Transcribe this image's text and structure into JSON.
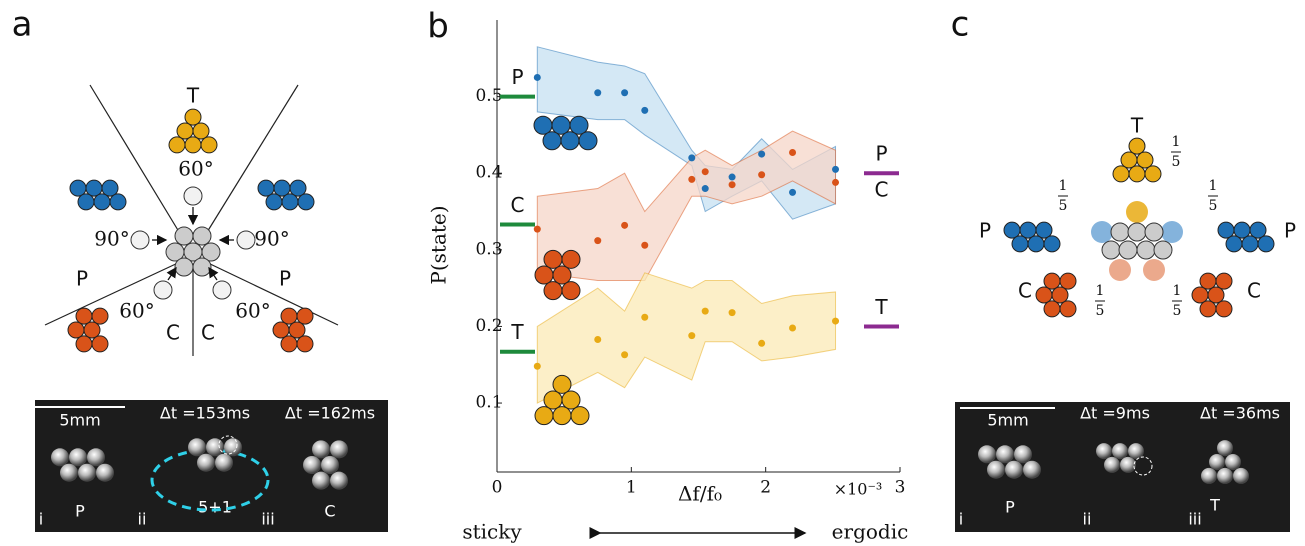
{
  "panel_a": {
    "label": "a",
    "diagram": {
      "top": "T",
      "top_angle": "60°",
      "left_angle": "90°",
      "right_angle": "90°",
      "left_state": "P",
      "right_state": "P",
      "bottom_left_angle": "60°",
      "bottom_left_state": "C",
      "bottom_right_state": "C",
      "bottom_right_angle": "60°"
    },
    "photos": {
      "scale": "5mm",
      "dt1": "Δt =153ms",
      "dt2": "Δt =162ms",
      "frames": [
        "i",
        "ii",
        "iii"
      ],
      "states": [
        "P",
        "5+1",
        "C"
      ]
    }
  },
  "chart_data": {
    "type": "scatter",
    "label": "b",
    "x_label": "Δf/f₀",
    "x_multiplier": "×10⁻³",
    "y_label": "P(state)",
    "x": [
      0.3,
      0.75,
      0.95,
      1.1,
      1.45,
      1.55,
      1.75,
      1.97,
      2.2,
      2.52
    ],
    "series": [
      {
        "name": "P",
        "color": "#1f6fb3",
        "band_color": "#c6e0f2",
        "values": [
          0.525,
          0.505,
          0.505,
          0.482,
          0.42,
          0.38,
          0.395,
          0.425,
          0.375,
          0.405
        ],
        "upper": [
          0.565,
          0.545,
          0.54,
          0.53,
          0.43,
          0.41,
          0.405,
          0.445,
          0.405,
          0.435
        ],
        "lower": [
          0.48,
          0.47,
          0.47,
          0.45,
          0.41,
          0.35,
          0.37,
          0.39,
          0.34,
          0.36
        ]
      },
      {
        "name": "C",
        "color": "#d95319",
        "band_color": "#f5d6c8",
        "values": [
          0.327,
          0.312,
          0.332,
          0.306,
          0.392,
          0.402,
          0.385,
          0.398,
          0.427,
          0.388
        ],
        "upper": [
          0.37,
          0.38,
          0.4,
          0.35,
          0.42,
          0.43,
          0.41,
          0.43,
          0.455,
          0.43
        ],
        "lower": [
          0.27,
          0.26,
          0.26,
          0.26,
          0.37,
          0.37,
          0.36,
          0.37,
          0.39,
          0.36
        ]
      },
      {
        "name": "T",
        "color": "#e8aa14",
        "band_color": "#fbe9b5",
        "values": [
          0.148,
          0.183,
          0.163,
          0.212,
          0.188,
          0.22,
          0.218,
          0.178,
          0.198,
          0.207
        ],
        "upper": [
          0.2,
          0.25,
          0.22,
          0.27,
          0.25,
          0.26,
          0.26,
          0.23,
          0.24,
          0.245
        ],
        "lower": [
          0.1,
          0.14,
          0.12,
          0.16,
          0.13,
          0.18,
          0.18,
          0.155,
          0.16,
          0.17
        ]
      }
    ],
    "references": [
      {
        "labels": [
          "P"
        ],
        "value": 0.5,
        "side": "left",
        "color": "#1e8a3c"
      },
      {
        "labels": [
          "C"
        ],
        "value": 0.333,
        "side": "left",
        "color": "#1e8a3c"
      },
      {
        "labels": [
          "T"
        ],
        "value": 0.167,
        "side": "left",
        "color": "#1e8a3c"
      },
      {
        "labels": [
          "P",
          "C"
        ],
        "value": 0.4,
        "side": "right",
        "color": "#8c2a90"
      },
      {
        "labels": [
          "T"
        ],
        "value": 0.2,
        "side": "right",
        "color": "#8c2a90"
      }
    ],
    "xlim": [
      0,
      3
    ],
    "ylim": [
      0.01,
      0.6
    ],
    "xticks": [
      0,
      1,
      2,
      3
    ],
    "yticks": [
      0.1,
      0.2,
      0.3,
      0.4,
      0.5
    ],
    "annotation_left": "sticky",
    "annotation_right": "ergodic"
  },
  "panel_c": {
    "label": "c",
    "diagram": {
      "top": "T",
      "left_state": "P",
      "right_state": "P",
      "bottom_left_state": "C",
      "bottom_right_state": "C",
      "fractions": [
        {
          "num": "1",
          "den": "5"
        },
        {
          "num": "1",
          "den": "5"
        },
        {
          "num": "1",
          "den": "5"
        },
        {
          "num": "1",
          "den": "5"
        },
        {
          "num": "1",
          "den": "5"
        }
      ]
    },
    "photos": {
      "scale": "5mm",
      "dt1": "Δt =9ms",
      "dt2": "Δt =36ms",
      "frames": [
        "i",
        "ii",
        "iii"
      ],
      "states": [
        "P",
        "T"
      ]
    }
  }
}
